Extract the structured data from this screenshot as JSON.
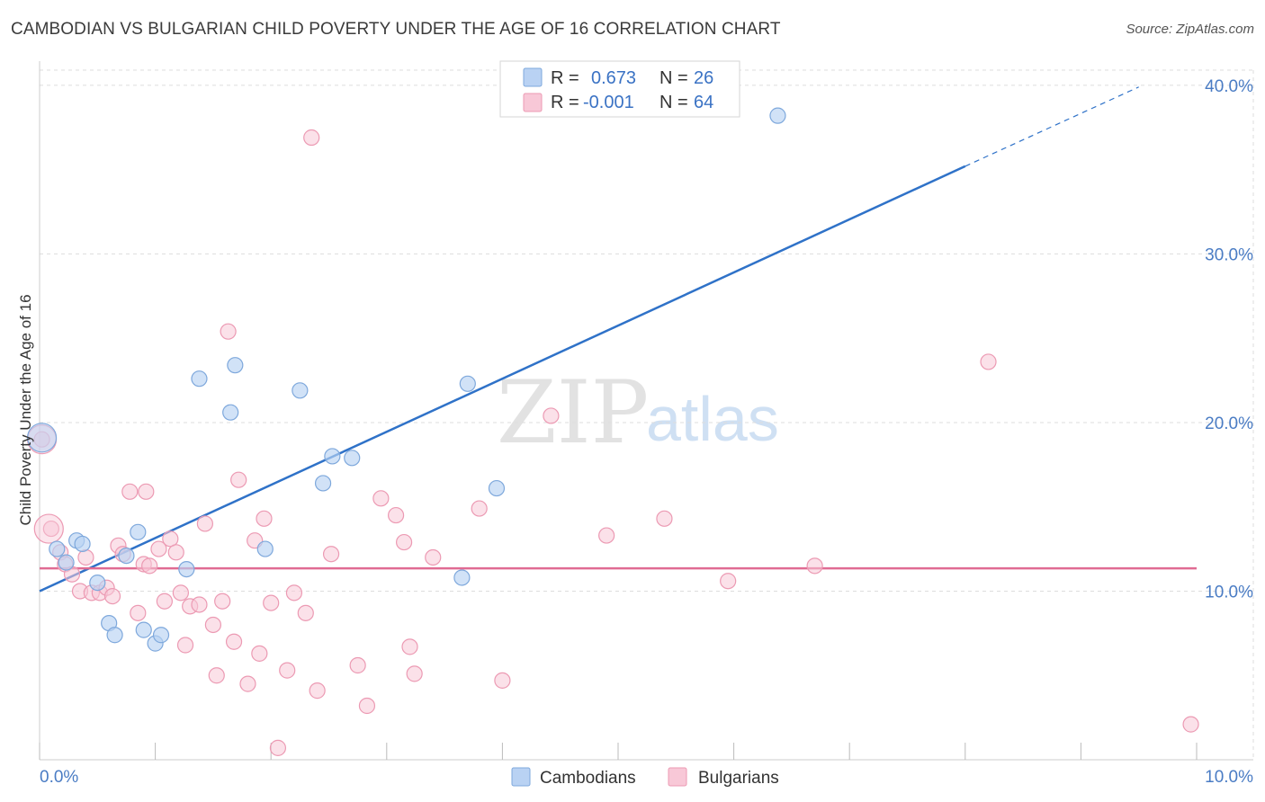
{
  "title": "CAMBODIAN VS BULGARIAN CHILD POVERTY UNDER THE AGE OF 16 CORRELATION CHART",
  "source": "Source: ZipAtlas.com",
  "watermark": {
    "part1": "ZIP",
    "part2": "atlas"
  },
  "colors": {
    "cambodian_fill": "#b9d2f3",
    "cambodian_stroke": "#7ea8dc",
    "cambodian_line": "#2f72c8",
    "bulgarian_fill": "#f8c8d7",
    "bulgarian_stroke": "#ec9ab3",
    "bulgarian_line": "#e06b93",
    "tick_text": "#4a7cc4",
    "grid": "#dddddd"
  },
  "legend": {
    "rows": [
      {
        "r_label": "R =",
        "r_value": "0.673",
        "n_label": "N =",
        "n_value": "26"
      },
      {
        "r_label": "R =",
        "r_value": "-0.001",
        "n_label": "N =",
        "n_value": "64"
      }
    ]
  },
  "bottom_legend": [
    "Cambodians",
    "Bulgarians"
  ],
  "chart_data": {
    "type": "scatter",
    "title": "CAMBODIAN VS BULGARIAN CHILD POVERTY UNDER THE AGE OF 16 CORRELATION CHART",
    "xlabel": "",
    "ylabel": "Child Poverty Under the Age of 16",
    "xlim": [
      0,
      10
    ],
    "ylim": [
      0,
      40.9
    ],
    "x_tick_labels": [
      "0.0%",
      "10.0%"
    ],
    "y_ticks": [
      10,
      20,
      30,
      40
    ],
    "y_tick_labels": [
      "10.0%",
      "20.0%",
      "30.0%",
      "40.0%"
    ],
    "grid": true,
    "legend_position": "top-center",
    "series": [
      {
        "name": "Cambodians",
        "points": [
          [
            0.02,
            19.1
          ],
          [
            0.15,
            12.5
          ],
          [
            0.23,
            11.7
          ],
          [
            0.32,
            13.0
          ],
          [
            0.37,
            12.8
          ],
          [
            0.5,
            10.5
          ],
          [
            0.6,
            8.1
          ],
          [
            0.65,
            7.4
          ],
          [
            0.75,
            12.1
          ],
          [
            0.85,
            13.5
          ],
          [
            0.9,
            7.7
          ],
          [
            1.0,
            6.9
          ],
          [
            1.05,
            7.4
          ],
          [
            1.27,
            11.3
          ],
          [
            1.38,
            22.6
          ],
          [
            1.65,
            20.6
          ],
          [
            1.69,
            23.4
          ],
          [
            1.95,
            12.5
          ],
          [
            2.25,
            21.9
          ],
          [
            2.45,
            16.4
          ],
          [
            2.53,
            18.0
          ],
          [
            2.7,
            17.9
          ],
          [
            3.65,
            10.8
          ],
          [
            3.7,
            22.3
          ],
          [
            3.95,
            16.1
          ],
          [
            6.38,
            38.2
          ]
        ],
        "trend": {
          "x0": 0,
          "y0": 10.0,
          "x1": 8.0,
          "y1": 35.2,
          "x_dash_end": 9.5,
          "y_dash_end": 39.9
        }
      },
      {
        "name": "Bulgarians",
        "points": [
          [
            0.02,
            19.0
          ],
          [
            0.1,
            13.7
          ],
          [
            0.18,
            12.3
          ],
          [
            0.22,
            11.6
          ],
          [
            0.28,
            11.0
          ],
          [
            0.35,
            10.0
          ],
          [
            0.4,
            12.0
          ],
          [
            0.45,
            9.9
          ],
          [
            0.52,
            9.9
          ],
          [
            0.58,
            10.2
          ],
          [
            0.63,
            9.7
          ],
          [
            0.68,
            12.7
          ],
          [
            0.72,
            12.2
          ],
          [
            0.78,
            15.9
          ],
          [
            0.85,
            8.7
          ],
          [
            0.9,
            11.6
          ],
          [
            0.92,
            15.9
          ],
          [
            0.95,
            11.5
          ],
          [
            1.03,
            12.5
          ],
          [
            1.08,
            9.4
          ],
          [
            1.13,
            13.1
          ],
          [
            1.18,
            12.3
          ],
          [
            1.22,
            9.9
          ],
          [
            1.26,
            6.8
          ],
          [
            1.3,
            9.1
          ],
          [
            1.38,
            9.2
          ],
          [
            1.43,
            14.0
          ],
          [
            1.5,
            8.0
          ],
          [
            1.53,
            5.0
          ],
          [
            1.58,
            9.4
          ],
          [
            1.63,
            25.4
          ],
          [
            1.68,
            7.0
          ],
          [
            1.72,
            16.6
          ],
          [
            1.8,
            4.5
          ],
          [
            1.86,
            13.0
          ],
          [
            1.9,
            6.3
          ],
          [
            1.94,
            14.3
          ],
          [
            2.0,
            9.3
          ],
          [
            2.06,
            0.7
          ],
          [
            2.14,
            5.3
          ],
          [
            2.2,
            9.9
          ],
          [
            2.3,
            8.7
          ],
          [
            2.35,
            36.9
          ],
          [
            2.4,
            4.1
          ],
          [
            2.52,
            12.2
          ],
          [
            2.75,
            5.6
          ],
          [
            2.83,
            3.2
          ],
          [
            2.95,
            15.5
          ],
          [
            3.08,
            14.5
          ],
          [
            3.15,
            12.9
          ],
          [
            3.2,
            6.7
          ],
          [
            3.24,
            5.1
          ],
          [
            3.4,
            12.0
          ],
          [
            3.8,
            14.9
          ],
          [
            4.0,
            4.7
          ],
          [
            4.42,
            20.4
          ],
          [
            4.9,
            13.3
          ],
          [
            5.4,
            14.3
          ],
          [
            5.95,
            10.6
          ],
          [
            6.7,
            11.5
          ],
          [
            8.2,
            23.6
          ],
          [
            9.95,
            2.1
          ]
        ],
        "big_points": [
          [
            0.08,
            13.7
          ],
          [
            0.02,
            19.0
          ]
        ],
        "trend": {
          "x0": 0,
          "y0": 11.35,
          "x1": 10,
          "y1": 11.35
        }
      }
    ]
  }
}
